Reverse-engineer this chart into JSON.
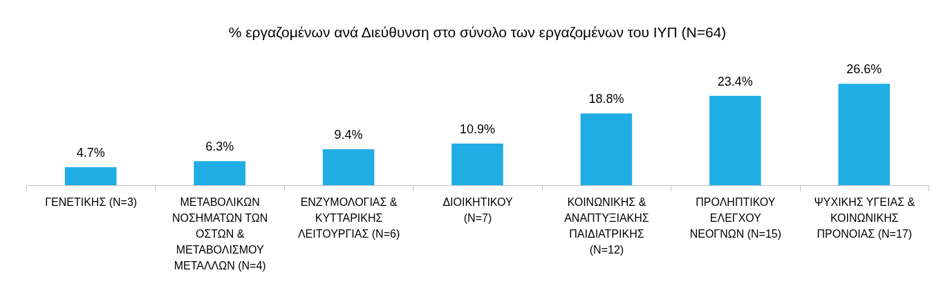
{
  "chart_data": {
    "type": "bar",
    "title": "% εργαζομένων ανά Διεύθυνση στο σύνολο των εργαζομένων του ΙΥΠ (N=64)",
    "categories": [
      "ΓΕΝΕΤΙΚΗΣ (N=3)",
      "ΜΕΤΑΒΟΛΙΚΩΝ\nΝΟΣΗΜΑΤΩΝ ΤΩΝ\nΟΣΤΩΝ &\nΜΕΤΑΒΟΛΙΣΜΟΥ\nΜΕΤΑΛΛΩΝ (N=4)",
      "ΕΝΖΥΜΟΛΟΓΙΑΣ &\nΚΥΤΤΑΡΙΚΗΣ\nΛΕΙΤΟΥΡΓΙΑΣ (N=6)",
      "ΔΙΟΙΚΗΤΙΚΟΥ\n(N=7)",
      "ΚΟΙΝΩΝΙΚΗΣ &\nΑΝΑΠΤΥΞΙΑΚΗΣ\nΠΑΙΔΙΑΤΡΙΚΗΣ\n(N=12)",
      "ΠΡΟΛΗΠΤΙΚΟΥ\nΕΛΕΓΧΟΥ\nΝΕΟΓΝΩΝ (N=15)",
      "ΨΥΧΙΚΗΣ ΥΓΕΙΑΣ &\nΚΟΙΝΩΝΙΚΗΣ\nΠΡΟΝΟΙΑΣ (N=17)"
    ],
    "values": [
      4.7,
      6.3,
      9.4,
      10.9,
      18.8,
      23.4,
      26.6
    ],
    "value_labels": [
      "4.7%",
      "6.3%",
      "9.4%",
      "10.9%",
      "18.8%",
      "23.4%",
      "26.6%"
    ],
    "color": "#1fade3",
    "tick_labels": "x"
  }
}
